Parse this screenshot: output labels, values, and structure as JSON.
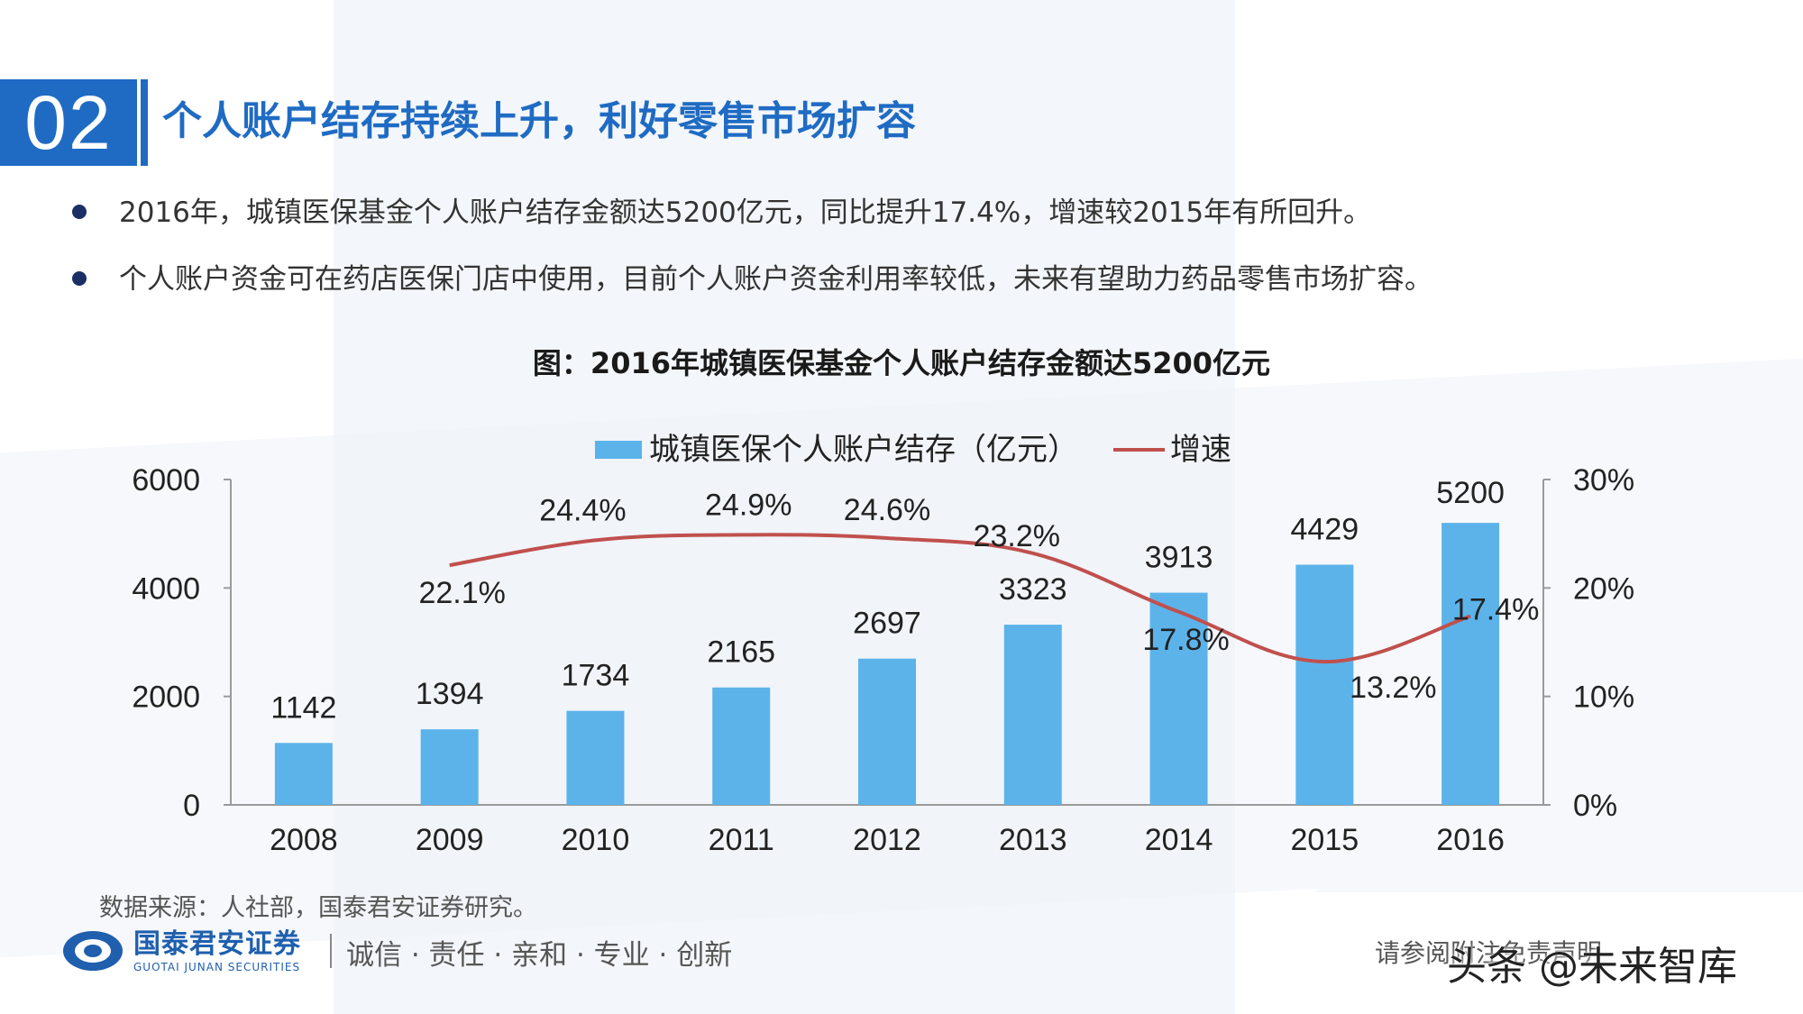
{
  "section": {
    "number": "02",
    "title": "个人账户结存持续上升，利好零售市场扩容"
  },
  "bullets": [
    "2016年，城镇医保基金个人账户结存金额达5200亿元，同比提升17.4%，增速较2015年有所回升。",
    "个人账户资金可在药店医保门店中使用，目前个人账户资金利用率较低，未来有望助力药品零售市场扩容。"
  ],
  "chart_caption": "图：2016年城镇医保基金个人账户结存金额达5200亿元",
  "chart_data": {
    "type": "bar",
    "categories": [
      "2008",
      "2009",
      "2010",
      "2011",
      "2012",
      "2013",
      "2014",
      "2015",
      "2016"
    ],
    "series": [
      {
        "name": "城镇医保个人账户结存（亿元）",
        "type": "bar",
        "axis": "left",
        "values": [
          1142,
          1394,
          1734,
          2165,
          2697,
          3323,
          3913,
          4429,
          5200
        ],
        "labels": [
          "1142",
          "1394",
          "1734",
          "2165",
          "2697",
          "3323",
          "3913",
          "4429",
          "5200"
        ],
        "color": "#5cb3ea"
      },
      {
        "name": "增速",
        "type": "line",
        "axis": "right",
        "values": [
          null,
          22.1,
          24.4,
          24.9,
          24.6,
          23.2,
          17.8,
          13.2,
          17.4
        ],
        "labels": [
          null,
          "22.1%",
          "24.4%",
          "24.9%",
          "24.6%",
          "23.2%",
          "17.8%",
          "13.2%",
          "17.4%"
        ],
        "color": "#c0504d"
      }
    ],
    "y_left": {
      "min": 0,
      "max": 6000,
      "ticks": [
        "0",
        "2000",
        "4000",
        "6000"
      ]
    },
    "y_right": {
      "min": 0,
      "max": 30,
      "ticks": [
        "0%",
        "10%",
        "20%",
        "30%"
      ]
    },
    "legend_position": "top",
    "grid": false
  },
  "footer": {
    "source": "数据来源：人社部，国泰君安证券研究。",
    "brand_cn": "国泰君安证券",
    "brand_en": "GUOTAI JUNAN SECURITIES",
    "slogan": "诚信 · 责任 · 亲和 · 专业 · 创新",
    "disclaimer": "请参阅附注免责声明",
    "watermark": "头条 @未来智库"
  }
}
